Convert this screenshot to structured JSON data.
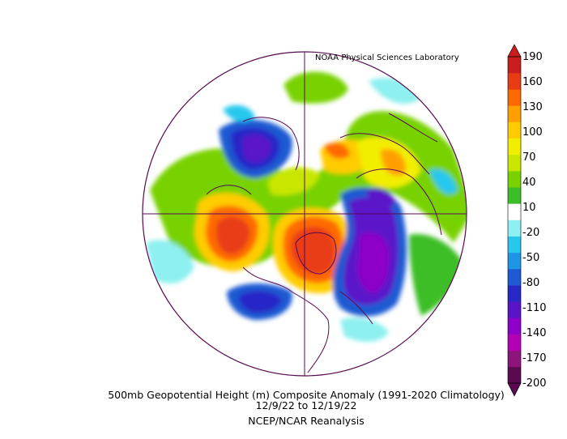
{
  "source_label": "NOAA Physical Sciences Laboratory",
  "caption": {
    "line1": "500mb Geopotential Height (m) Composite Anomaly (1991-2020 Climatology)",
    "line2": "12/9/22  to 12/19/22",
    "line3": "NCEP/NCAR Reanalysis"
  },
  "colorbar": {
    "ticks": [
      "190",
      "160",
      "130",
      "100",
      "70",
      "40",
      "10",
      "-20",
      "-50",
      "-80",
      "-110",
      "-140",
      "-170",
      "-200"
    ],
    "colors": [
      "#c81e1e",
      "#e83c14",
      "#ff6a00",
      "#ffa000",
      "#ffcc00",
      "#f2ee00",
      "#c8e600",
      "#78d200",
      "#3cbe28",
      "#ffffff",
      "#8ef0f0",
      "#28c8ee",
      "#1e96e6",
      "#1e5ad2",
      "#2828c8",
      "#5a14c8",
      "#8c00c8",
      "#b400b4",
      "#8c147a",
      "#5a0a50"
    ]
  },
  "legend_icons": {
    "top": "triangle-up-icon",
    "bottom": "triangle-down-icon"
  }
}
